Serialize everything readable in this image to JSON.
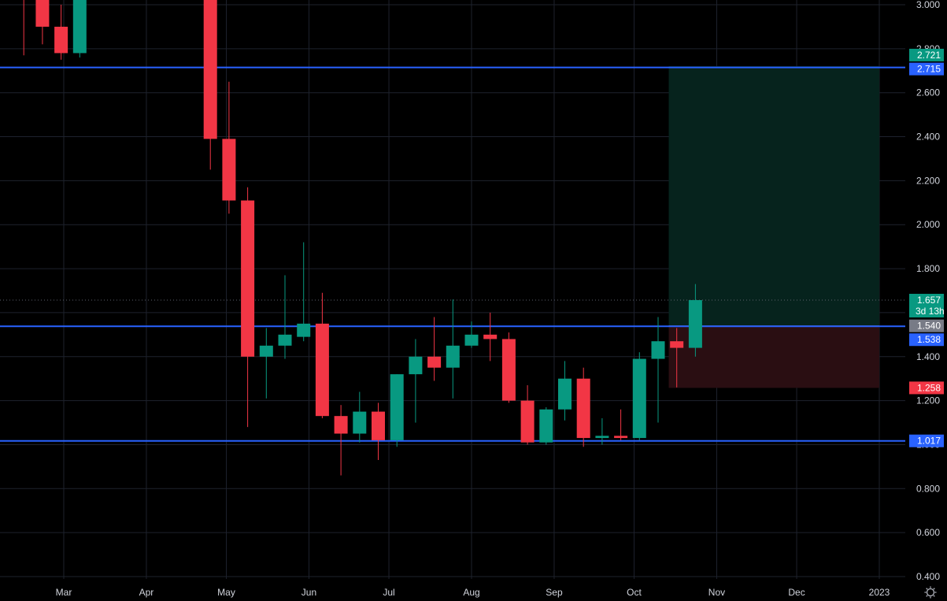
{
  "colors": {
    "background": "#000000",
    "grid": "#1e222d",
    "up": "#089981",
    "down": "#f23645",
    "hline": "#2962ff",
    "target_zone": "#06231d",
    "stop_zone": "#2a0e12",
    "axis_text": "#d1d4dc",
    "current_price_badge": "#089981",
    "entry_badge": "#787b86",
    "stop_badge": "#f23645",
    "hline_badge": "#2962ff"
  },
  "chart_data": {
    "type": "candlestick",
    "interval": "weekly",
    "title": "",
    "xlabel": "",
    "ylabel": "",
    "ylim": [
      0.4,
      3.0
    ],
    "y_ticks": [
      "3.000",
      "2.800",
      "2.600",
      "2.400",
      "2.200",
      "2.000",
      "1.800",
      "1.600",
      "1.400",
      "1.200",
      "1.000",
      "0.800",
      "0.600",
      "0.400"
    ],
    "x_ticks": [
      {
        "label": "Mar",
        "date": "2022-03-01"
      },
      {
        "label": "Apr",
        "date": "2022-04-01"
      },
      {
        "label": "May",
        "date": "2022-05-01"
      },
      {
        "label": "Jun",
        "date": "2022-06-01"
      },
      {
        "label": "Jul",
        "date": "2022-07-01"
      },
      {
        "label": "Aug",
        "date": "2022-08-01"
      },
      {
        "label": "Sep",
        "date": "2022-09-01"
      },
      {
        "label": "Oct",
        "date": "2022-10-01"
      },
      {
        "label": "Nov",
        "date": "2022-11-01"
      },
      {
        "label": "Dec",
        "date": "2022-12-01"
      },
      {
        "label": "2023",
        "date": "2023-01-01"
      }
    ],
    "candles": [
      {
        "date": "2022-02-14",
        "open": 3.1,
        "high": 3.3,
        "low": 2.77,
        "close": 3.05
      },
      {
        "date": "2022-02-21",
        "open": 3.1,
        "high": 3.3,
        "low": 2.82,
        "close": 2.9
      },
      {
        "date": "2022-02-28",
        "open": 2.9,
        "high": 3.0,
        "low": 2.75,
        "close": 2.78
      },
      {
        "date": "2022-03-07",
        "open": 2.78,
        "high": 3.1,
        "low": 2.76,
        "close": 3.05
      },
      {
        "date": "2022-04-25",
        "open": 3.05,
        "high": 3.1,
        "low": 2.25,
        "close": 2.39
      },
      {
        "date": "2022-05-02",
        "open": 2.39,
        "high": 2.65,
        "low": 2.05,
        "close": 2.11
      },
      {
        "date": "2022-05-09",
        "open": 2.11,
        "high": 2.17,
        "low": 1.08,
        "close": 1.4
      },
      {
        "date": "2022-05-16",
        "open": 1.4,
        "high": 1.53,
        "low": 1.21,
        "close": 1.45
      },
      {
        "date": "2022-05-23",
        "open": 1.45,
        "high": 1.77,
        "low": 1.39,
        "close": 1.5
      },
      {
        "date": "2022-05-30",
        "open": 1.49,
        "high": 1.92,
        "low": 1.47,
        "close": 1.55
      },
      {
        "date": "2022-06-06",
        "open": 1.55,
        "high": 1.69,
        "low": 1.12,
        "close": 1.13
      },
      {
        "date": "2022-06-13",
        "open": 1.13,
        "high": 1.18,
        "low": 0.86,
        "close": 1.05
      },
      {
        "date": "2022-06-20",
        "open": 1.05,
        "high": 1.24,
        "low": 1.01,
        "close": 1.15
      },
      {
        "date": "2022-06-27",
        "open": 1.15,
        "high": 1.19,
        "low": 0.93,
        "close": 1.02
      },
      {
        "date": "2022-07-04",
        "open": 1.02,
        "high": 1.32,
        "low": 0.99,
        "close": 1.32
      },
      {
        "date": "2022-07-11",
        "open": 1.32,
        "high": 1.48,
        "low": 1.1,
        "close": 1.4
      },
      {
        "date": "2022-07-18",
        "open": 1.4,
        "high": 1.58,
        "low": 1.29,
        "close": 1.35
      },
      {
        "date": "2022-07-25",
        "open": 1.35,
        "high": 1.66,
        "low": 1.21,
        "close": 1.45
      },
      {
        "date": "2022-08-01",
        "open": 1.45,
        "high": 1.56,
        "low": 1.44,
        "close": 1.5
      },
      {
        "date": "2022-08-08",
        "open": 1.5,
        "high": 1.6,
        "low": 1.38,
        "close": 1.48
      },
      {
        "date": "2022-08-15",
        "open": 1.48,
        "high": 1.51,
        "low": 1.19,
        "close": 1.2
      },
      {
        "date": "2022-08-22",
        "open": 1.2,
        "high": 1.27,
        "low": 1.0,
        "close": 1.01
      },
      {
        "date": "2022-08-29",
        "open": 1.01,
        "high": 1.17,
        "low": 1.0,
        "close": 1.16
      },
      {
        "date": "2022-09-05",
        "open": 1.16,
        "high": 1.38,
        "low": 1.11,
        "close": 1.3
      },
      {
        "date": "2022-09-12",
        "open": 1.3,
        "high": 1.35,
        "low": 0.99,
        "close": 1.03
      },
      {
        "date": "2022-09-19",
        "open": 1.03,
        "high": 1.12,
        "low": 1.0,
        "close": 1.04
      },
      {
        "date": "2022-09-26",
        "open": 1.04,
        "high": 1.16,
        "low": 1.02,
        "close": 1.03
      },
      {
        "date": "2022-10-03",
        "open": 1.03,
        "high": 1.42,
        "low": 1.02,
        "close": 1.39
      },
      {
        "date": "2022-10-10",
        "open": 1.39,
        "high": 1.58,
        "low": 1.1,
        "close": 1.47
      },
      {
        "date": "2022-10-17",
        "open": 1.47,
        "high": 1.53,
        "low": 1.26,
        "close": 1.44
      },
      {
        "date": "2022-10-24",
        "open": 1.44,
        "high": 1.73,
        "low": 1.4,
        "close": 1.657
      }
    ],
    "horizontal_lines": [
      2.715,
      1.538,
      1.017
    ],
    "position": {
      "entry": 1.54,
      "target": 2.721,
      "stop": 1.258,
      "start_date": "2022-10-14",
      "end_date": "2023-01-01"
    },
    "current_price": 1.657,
    "countdown": "3d 13h",
    "price_badges": [
      {
        "value": "2.721",
        "role": "target"
      },
      {
        "value": "2.715",
        "role": "hline"
      },
      {
        "value": "1.657",
        "role": "current"
      },
      {
        "value": "1.540",
        "role": "entry"
      },
      {
        "value": "1.538",
        "role": "hline"
      },
      {
        "value": "1.258",
        "role": "stop"
      },
      {
        "value": "1.017",
        "role": "hline"
      }
    ],
    "grid": true
  }
}
